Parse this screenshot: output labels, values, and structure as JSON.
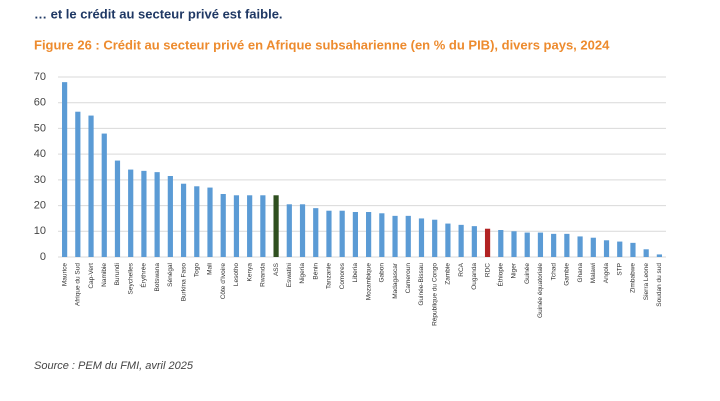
{
  "header": "… et le crédit au secteur privé est faible.",
  "source": "Source : PEM du FMI, avril 2025",
  "chart_data": {
    "type": "bar",
    "title": "Figure 26 : Crédit au secteur privé en Afrique subsaharienne (en % du PIB), divers pays, 2024",
    "categories": [
      "Maurice",
      "Afrique du Sud",
      "Cap-Vert",
      "Namibie",
      "Burundi",
      "Seychelles",
      "Érythrée",
      "Botswana",
      "Sénégal",
      "Burkina Faso",
      "Togo",
      "Mali",
      "Côte d'Ivoire",
      "Lesotho",
      "Kenya",
      "Rwanda",
      "ASS",
      "Eswatini",
      "Nigeria",
      "Bénin",
      "Tanzanie",
      "Comores",
      "Liberia",
      "Mozambique",
      "Gabon",
      "Madagascar",
      "Cameroun",
      "Guinée-Bissau",
      "République du Congo",
      "Zambie",
      "RCA",
      "Ouganda",
      "RDC",
      "Éthiopie",
      "Niger",
      "Guinée",
      "Guinée équatoriale",
      "Tchad",
      "Gambie",
      "Ghana",
      "Malawi",
      "Angola",
      "STP",
      "Zimbabwe",
      "Sierra Leone",
      "Soudan du sud"
    ],
    "values": [
      68,
      56.5,
      55,
      48,
      37.5,
      34,
      33.5,
      33,
      31.5,
      28.5,
      27.5,
      27,
      24.5,
      24,
      24,
      24,
      24,
      20.5,
      20.5,
      19,
      18,
      18,
      17.5,
      17.5,
      17,
      16,
      16,
      15,
      14.5,
      13,
      12.5,
      12,
      11,
      10.5,
      10,
      9.5,
      9.5,
      9,
      9,
      8,
      7.5,
      6.5,
      6,
      5.5,
      3,
      1
    ],
    "colors": [
      "#5b9bd5",
      "#5b9bd5",
      "#5b9bd5",
      "#5b9bd5",
      "#5b9bd5",
      "#5b9bd5",
      "#5b9bd5",
      "#5b9bd5",
      "#5b9bd5",
      "#5b9bd5",
      "#5b9bd5",
      "#5b9bd5",
      "#5b9bd5",
      "#5b9bd5",
      "#5b9bd5",
      "#5b9bd5",
      "#2f4f1f",
      "#5b9bd5",
      "#5b9bd5",
      "#5b9bd5",
      "#5b9bd5",
      "#5b9bd5",
      "#5b9bd5",
      "#5b9bd5",
      "#5b9bd5",
      "#5b9bd5",
      "#5b9bd5",
      "#5b9bd5",
      "#5b9bd5",
      "#5b9bd5",
      "#5b9bd5",
      "#5b9bd5",
      "#b22222",
      "#5b9bd5",
      "#5b9bd5",
      "#5b9bd5",
      "#5b9bd5",
      "#5b9bd5",
      "#5b9bd5",
      "#5b9bd5",
      "#5b9bd5",
      "#5b9bd5",
      "#5b9bd5",
      "#5b9bd5",
      "#5b9bd5",
      "#5b9bd5"
    ],
    "ylim": [
      0,
      70
    ],
    "yticks": [
      0,
      10,
      20,
      30,
      40,
      50,
      60,
      70
    ],
    "grid": true
  }
}
